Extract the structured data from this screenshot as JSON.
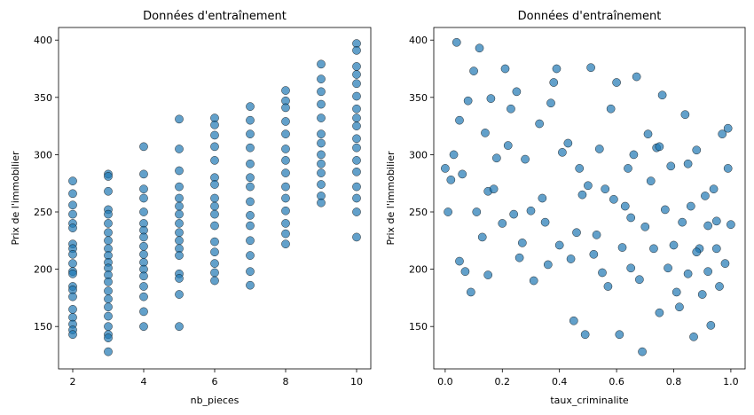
{
  "chart_data": [
    {
      "type": "scatter",
      "title": "Données d'entraînement",
      "x_label": "nb_pieces",
      "y_label": "Prix de l'immobilier",
      "color": "#1f77b4",
      "xlim": [
        1.6,
        10.4
      ],
      "xticks": [
        2,
        4,
        6,
        8,
        10
      ],
      "ylim": [
        113,
        411
      ],
      "yticks": [
        150,
        200,
        250,
        300,
        350,
        400
      ],
      "x": [
        2,
        2,
        2,
        2,
        2,
        2,
        2,
        2,
        2,
        2,
        2,
        2,
        2,
        2,
        2,
        2,
        2,
        2,
        2,
        2,
        3,
        3,
        3,
        3,
        3,
        3,
        3,
        3,
        3,
        3,
        3,
        3,
        3,
        3,
        3,
        3,
        3,
        3,
        3,
        3,
        3,
        3,
        4,
        4,
        4,
        4,
        4,
        4,
        4,
        4,
        4,
        4,
        4,
        4,
        4,
        4,
        4,
        4,
        4,
        5,
        5,
        5,
        5,
        5,
        5,
        5,
        5,
        5,
        5,
        5,
        5,
        5,
        5,
        5,
        5,
        6,
        6,
        6,
        6,
        6,
        6,
        6,
        6,
        6,
        6,
        6,
        6,
        6,
        6,
        6,
        6,
        7,
        7,
        7,
        7,
        7,
        7,
        7,
        7,
        7,
        7,
        7,
        7,
        7,
        7,
        8,
        8,
        8,
        8,
        8,
        8,
        8,
        8,
        8,
        8,
        8,
        8,
        8,
        8,
        9,
        9,
        9,
        9,
        9,
        9,
        9,
        9,
        9,
        9,
        9,
        9,
        9,
        10,
        10,
        10,
        10,
        10,
        10,
        10,
        10,
        10,
        10,
        10,
        10,
        10,
        10,
        10,
        10,
        10
      ],
      "values": [
        277,
        266,
        256,
        248,
        240,
        236,
        222,
        218,
        213,
        205,
        198,
        196,
        185,
        182,
        176,
        165,
        158,
        152,
        147,
        143,
        283,
        281,
        268,
        252,
        248,
        240,
        232,
        225,
        218,
        212,
        206,
        201,
        195,
        189,
        181,
        174,
        167,
        159,
        150,
        143,
        140,
        128,
        307,
        283,
        270,
        262,
        250,
        240,
        234,
        228,
        220,
        213,
        206,
        200,
        194,
        185,
        176,
        163,
        150,
        331,
        305,
        286,
        272,
        262,
        255,
        248,
        240,
        232,
        225,
        218,
        212,
        196,
        192,
        178,
        150,
        332,
        326,
        317,
        307,
        295,
        280,
        274,
        262,
        255,
        248,
        238,
        224,
        215,
        205,
        197,
        190,
        342,
        330,
        318,
        306,
        292,
        280,
        272,
        259,
        247,
        238,
        225,
        212,
        198,
        186,
        356,
        347,
        341,
        329,
        318,
        305,
        295,
        284,
        272,
        262,
        251,
        240,
        231,
        222,
        379,
        366,
        355,
        344,
        332,
        318,
        310,
        300,
        292,
        284,
        274,
        264,
        258,
        397,
        391,
        377,
        370,
        362,
        351,
        340,
        332,
        325,
        314,
        306,
        295,
        285,
        272,
        262,
        250,
        228
      ]
    },
    {
      "type": "scatter",
      "title": "Données d'entraînement",
      "x_label": "taux_criminalite",
      "y_label": "Prix de l'immobilier",
      "color": "#1f77b4",
      "xlim": [
        -0.04,
        1.05
      ],
      "xticks": [
        {
          "value": 0,
          "label": "0.0"
        },
        0.2,
        0.4,
        0.6,
        0.8,
        {
          "value": 1,
          "label": "1.0"
        }
      ],
      "ylim": [
        113,
        411
      ],
      "yticks": [
        150,
        200,
        250,
        300,
        350,
        400
      ],
      "x": [
        0.0,
        0.01,
        0.02,
        0.03,
        0.04,
        0.05,
        0.06,
        0.07,
        0.08,
        0.09,
        0.1,
        0.11,
        0.12,
        0.13,
        0.14,
        0.15,
        0.16,
        0.18,
        0.2,
        0.21,
        0.22,
        0.24,
        0.25,
        0.27,
        0.28,
        0.3,
        0.31,
        0.33,
        0.35,
        0.36,
        0.38,
        0.39,
        0.4,
        0.41,
        0.43,
        0.44,
        0.45,
        0.47,
        0.49,
        0.5,
        0.51,
        0.53,
        0.55,
        0.57,
        0.58,
        0.59,
        0.6,
        0.61,
        0.62,
        0.63,
        0.64,
        0.65,
        0.66,
        0.67,
        0.68,
        0.69,
        0.7,
        0.71,
        0.72,
        0.73,
        0.74,
        0.75,
        0.76,
        0.77,
        0.78,
        0.79,
        0.8,
        0.81,
        0.82,
        0.83,
        0.84,
        0.85,
        0.86,
        0.87,
        0.88,
        0.89,
        0.9,
        0.91,
        0.92,
        0.93,
        0.94,
        0.95,
        0.96,
        0.97,
        0.98,
        0.99,
        1.0,
        0.05,
        0.17,
        0.23,
        0.34,
        0.46,
        0.52,
        0.56,
        0.65,
        0.75,
        0.85,
        0.95,
        0.99,
        0.15,
        0.26,
        0.37,
        0.48,
        0.54,
        0.88,
        0.92
      ],
      "values": [
        288,
        250,
        278,
        300,
        398,
        207,
        283,
        198,
        347,
        180,
        373,
        250,
        393,
        228,
        319,
        268,
        349,
        297,
        240,
        375,
        308,
        248,
        355,
        223,
        296,
        251,
        190,
        327,
        241,
        204,
        363,
        375,
        221,
        302,
        310,
        209,
        155,
        288,
        143,
        273,
        376,
        230,
        197,
        185,
        340,
        261,
        363,
        143,
        219,
        255,
        288,
        201,
        300,
        368,
        191,
        128,
        237,
        318,
        277,
        218,
        306,
        162,
        352,
        252,
        201,
        290,
        221,
        180,
        167,
        241,
        335,
        196,
        255,
        141,
        304,
        218,
        178,
        264,
        198,
        151,
        270,
        242,
        185,
        318,
        205,
        288,
        239,
        330,
        270,
        340,
        262,
        232,
        213,
        270,
        245,
        307,
        292,
        218,
        323,
        195,
        210,
        345,
        265,
        305,
        215,
        238
      ]
    }
  ]
}
